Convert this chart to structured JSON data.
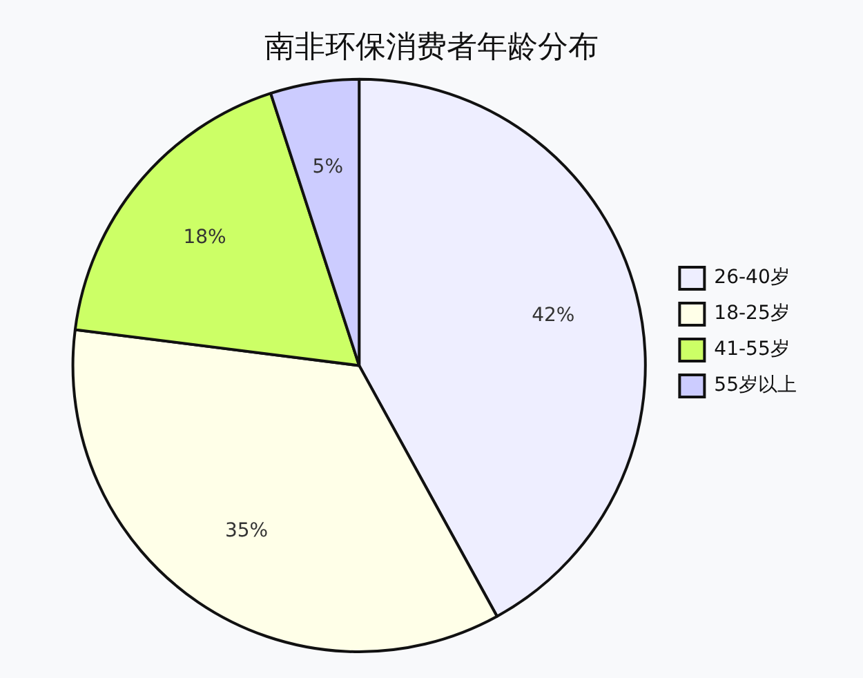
{
  "chart_data": {
    "type": "pie",
    "title": "南非环保消费者年龄分布",
    "categories": [
      "26-40岁",
      "18-25岁",
      "41-55岁",
      "55岁以上"
    ],
    "values": [
      42,
      35,
      18,
      5
    ],
    "colors": [
      "#eeeeff",
      "#ffffe8",
      "#ccff66",
      "#ccccff"
    ],
    "value_labels": [
      "42%",
      "35%",
      "18%",
      "5%"
    ],
    "legend": "right"
  }
}
